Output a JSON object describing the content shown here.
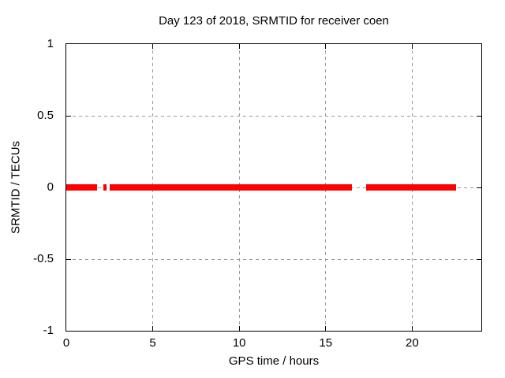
{
  "title": "Day 123 of 2018, SRMTID for receiver coen",
  "colors": {
    "line": "#ff0000",
    "grid": "#999999",
    "axis": "#000000",
    "background": "#ffffff",
    "text": "#000000"
  },
  "chart_data": {
    "type": "line",
    "title": "Day 123 of 2018, SRMTID for receiver coen",
    "xlabel": "GPS time / hours",
    "ylabel": "SRMTID / TECUs",
    "xlim": [
      0,
      24
    ],
    "ylim": [
      -1,
      1
    ],
    "x_ticks": [
      0,
      5,
      10,
      15,
      20
    ],
    "x_tick_labels": [
      "0",
      "5",
      "10",
      "15",
      "20"
    ],
    "y_ticks": [
      -1,
      -0.5,
      0,
      0.5,
      1
    ],
    "y_tick_labels": [
      "-1",
      "-0.5",
      "0",
      "0.5",
      "1"
    ],
    "grid": "dotted",
    "legend": "none",
    "series": [
      {
        "name": "SRMTID",
        "color": "#ff0000",
        "value": 0,
        "segments_hours": [
          [
            0.0,
            1.8
          ],
          [
            2.15,
            2.33
          ],
          [
            2.5,
            16.5
          ],
          [
            17.35,
            22.55
          ]
        ]
      }
    ]
  }
}
